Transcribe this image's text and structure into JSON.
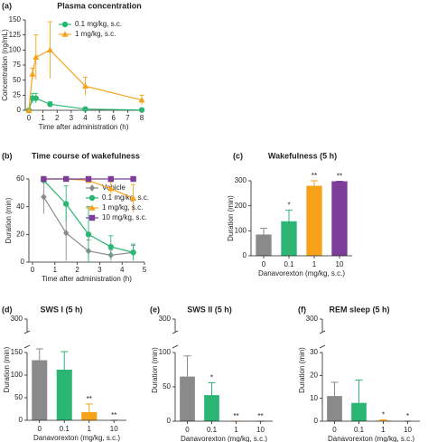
{
  "chart_data": [
    {
      "type": "line",
      "panel_label": "(a)",
      "title": "Plasma concentration",
      "x_label": "Time after administration (h)",
      "y_label": "Concentration (ng/mL)",
      "xlim": [
        0,
        8
      ],
      "xticks": [
        0,
        1,
        2,
        3,
        4,
        5,
        6,
        7,
        8
      ],
      "ylim": [
        0,
        150
      ],
      "yticks": [
        0,
        25,
        50,
        75,
        100,
        125,
        150
      ],
      "legend": "upper right",
      "x": [
        0,
        0.25,
        0.5,
        1.5,
        4,
        8
      ],
      "series": [
        {
          "name": "0.1 mg/kg, s.c.",
          "color": "#2bb673",
          "marker": "circle",
          "values": [
            0,
            20,
            20,
            10,
            2,
            0.5
          ],
          "errors": [
            0,
            8,
            8,
            4,
            1,
            0.5
          ]
        },
        {
          "name": "1 mg/kg, s.c.",
          "color": "#f7a21b",
          "marker": "triangle",
          "values": [
            0,
            60,
            88,
            100,
            40,
            17
          ],
          "errors": [
            0,
            10,
            37,
            47,
            15,
            8
          ]
        }
      ]
    },
    {
      "type": "line",
      "panel_label": "(b)",
      "title": "Time course of wakefulness",
      "x_label": "Time after administration (h)",
      "y_label": "Duration (min)",
      "xlim": [
        0,
        5
      ],
      "xticks": [
        0,
        1,
        2,
        3,
        4,
        5
      ],
      "ylim": [
        0,
        60
      ],
      "yticks": [
        0,
        20,
        40,
        60
      ],
      "legend": "right",
      "x": [
        0.5,
        1.5,
        2.5,
        3.5,
        4.5
      ],
      "series": [
        {
          "name": "Vehicle",
          "color": "#8a8a8a",
          "marker": "diamond",
          "values": [
            47,
            21,
            8,
            5,
            7
          ],
          "errors": [
            12,
            20,
            8,
            4,
            5
          ]
        },
        {
          "name": "0.1 mg/kg, s.c.",
          "color": "#2bb673",
          "marker": "circle",
          "values": [
            59,
            42,
            20,
            11,
            7
          ],
          "errors": [
            2,
            13,
            20,
            8,
            6
          ]
        },
        {
          "name": "1 mg/kg, s.c.",
          "color": "#f7a21b",
          "marker": "triangle",
          "values": [
            60,
            60,
            59,
            53,
            46
          ],
          "errors": [
            0,
            0,
            1,
            5,
            10
          ]
        },
        {
          "name": "10 mg/kg, s.c.",
          "color": "#7d3c98",
          "marker": "square",
          "values": [
            60,
            60,
            60,
            60,
            60
          ],
          "errors": [
            0,
            0,
            0,
            0,
            0
          ]
        }
      ]
    },
    {
      "type": "bar",
      "panel_label": "(c)",
      "title": "Wakefulness (5 h)",
      "x_label": "Danavorexton (mg/kg, s.c.)",
      "y_label": "Duration (min)",
      "categories": [
        "0",
        "0.1",
        "1",
        "10"
      ],
      "colors": [
        "#8a8a8a",
        "#2bb673",
        "#f7a21b",
        "#7d3c98"
      ],
      "values": [
        85,
        138,
        280,
        298
      ],
      "errors": [
        25,
        45,
        20,
        0
      ],
      "annotations": [
        null,
        "*",
        "**",
        "**"
      ],
      "ylim": [
        0,
        300
      ],
      "yticks": [
        0,
        100,
        200,
        300
      ]
    },
    {
      "type": "bar",
      "panel_label": "(d)",
      "title": "SWS I (5 h)",
      "x_label": "Danavorexton (mg/kg, s.c.)",
      "y_label": "Duration (min)",
      "categories": [
        "0",
        "0.1",
        "1",
        "10"
      ],
      "colors": [
        "#8a8a8a",
        "#2bb673",
        "#f7a21b",
        "#7d3c98"
      ],
      "values": [
        133,
        112,
        18,
        0
      ],
      "errors": [
        25,
        40,
        18,
        0
      ],
      "annotations": [
        null,
        null,
        "**",
        "**"
      ],
      "ylim": [
        0,
        150
      ],
      "yticks": [
        0,
        50,
        100,
        150
      ],
      "ybreak_ticks": [
        300
      ]
    },
    {
      "type": "bar",
      "panel_label": "(e)",
      "title": "SWS II (5 h)",
      "x_label": "Danavorexton (mg/kg, s.c.)",
      "y_label": "Duration (min)",
      "categories": [
        "0",
        "0.1",
        "1",
        "10"
      ],
      "colors": [
        "#8a8a8a",
        "#2bb673",
        "#f7a21b",
        "#7d3c98"
      ],
      "values": [
        65,
        38,
        0,
        0
      ],
      "errors": [
        30,
        18,
        0,
        0
      ],
      "annotations": [
        null,
        "*",
        "**",
        "**"
      ],
      "ylim": [
        0,
        100
      ],
      "yticks": [
        0,
        50,
        100
      ],
      "ybreak_ticks": [
        300
      ]
    },
    {
      "type": "bar",
      "panel_label": "(f)",
      "title": "REM sleep (5 h)",
      "x_label": "Danavorexton (mg/kg, s.c.)",
      "y_label": "Duration (min)",
      "categories": [
        "0",
        "0.1",
        "1",
        "10"
      ],
      "colors": [
        "#8a8a8a",
        "#2bb673",
        "#f7a21b",
        "#7d3c98"
      ],
      "values": [
        11,
        8,
        0.3,
        0
      ],
      "errors": [
        6,
        10,
        0.3,
        0
      ],
      "annotations": [
        null,
        null,
        "*",
        "*"
      ],
      "ylim": [
        0,
        30
      ],
      "yticks": [
        0,
        10,
        20,
        30
      ],
      "ybreak_ticks": [
        300
      ]
    }
  ]
}
